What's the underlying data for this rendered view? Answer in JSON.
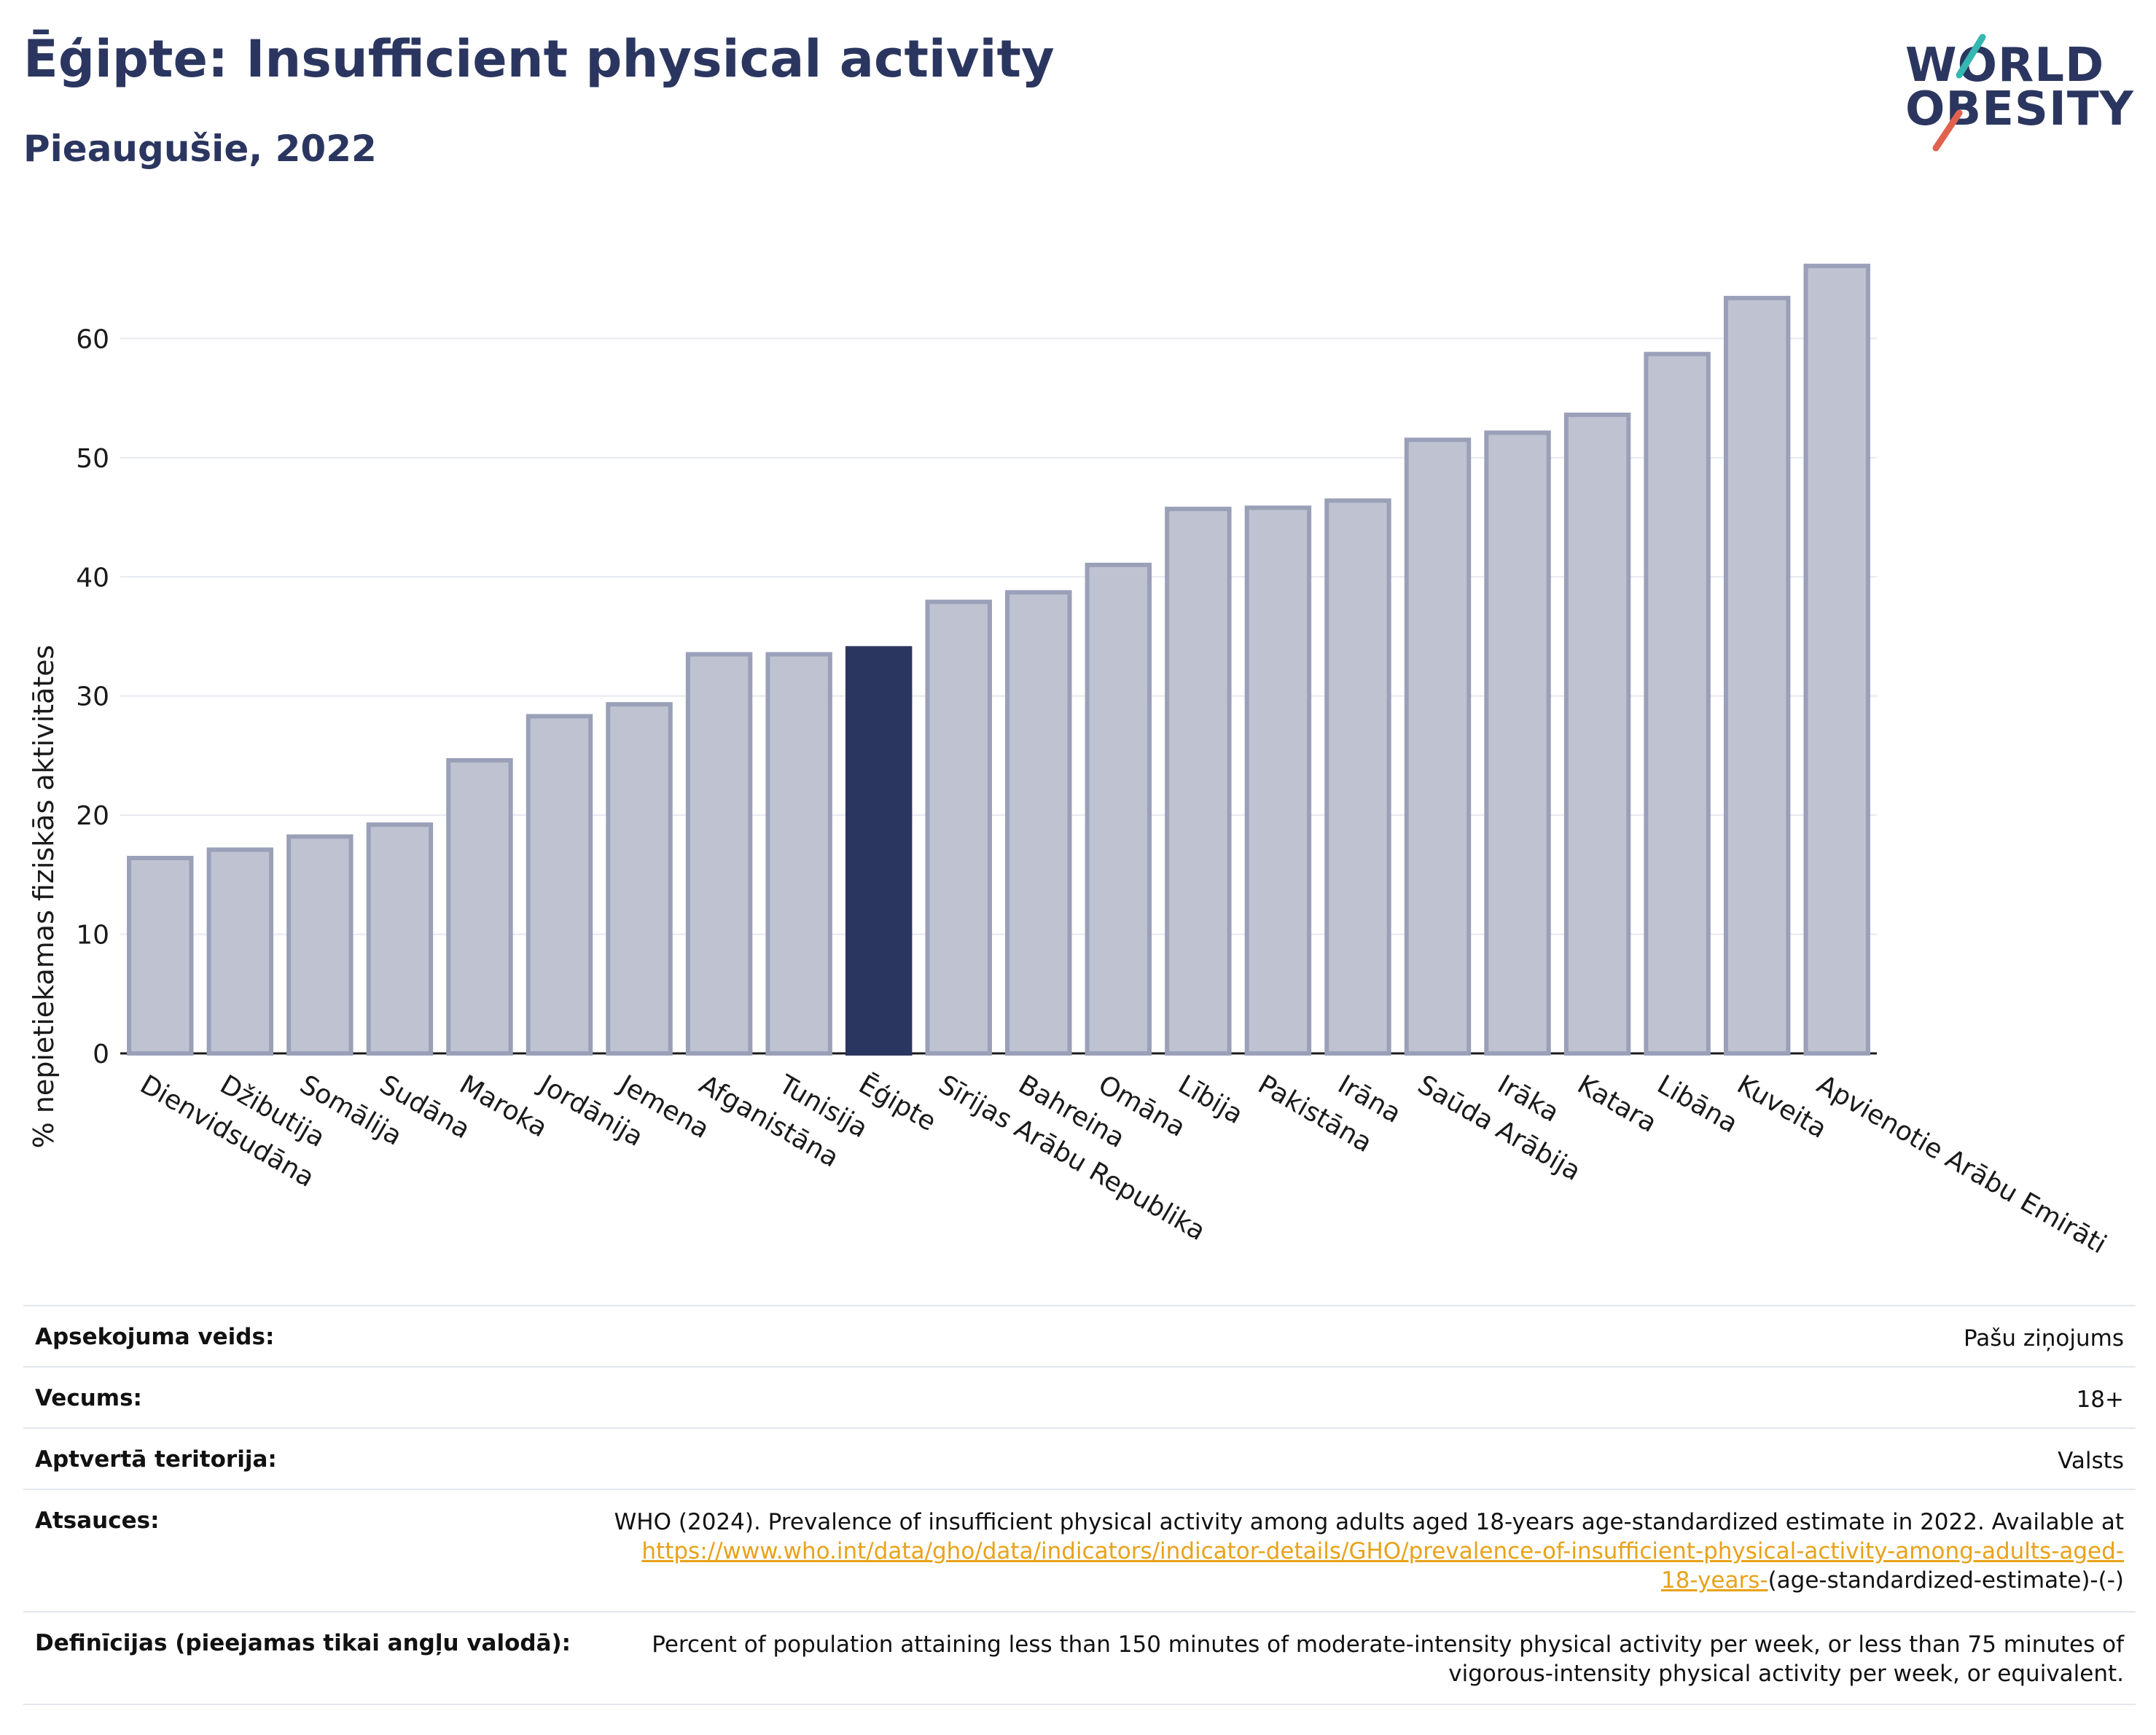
{
  "title": "Ēģipte: Insufficient physical activity",
  "subtitle": "Pieaugušie, 2022",
  "logo": {
    "line1": "WORLD",
    "line2": "OBESITY"
  },
  "colors": {
    "highlight": "#2b3660",
    "bar": "#bfc2d0",
    "bar_border": "#9aa0b8",
    "grid": "#e6e8f0",
    "accent_teal": "#35b7b2",
    "accent_red": "#e0624e"
  },
  "chart_data": {
    "type": "bar",
    "title": "Ēģipte: Insufficient physical activity",
    "subtitle": "Pieaugušie, 2022",
    "ylabel": "% nepietiekamas fiziskās aktivitātes",
    "xlabel": "",
    "ylim": [
      0,
      67
    ],
    "yticks": [
      0,
      10,
      20,
      30,
      40,
      50,
      60
    ],
    "grid": true,
    "highlight": "Ēģipte",
    "categories": [
      "Dienvidsudāna",
      "Džibutija",
      "Somālija",
      "Sudāna",
      "Maroka",
      "Jordānija",
      "Jemena",
      "Afganistāna",
      "Tunisija",
      "Ēģipte",
      "Sīrijas Arābu Republika",
      "Bahreina",
      "Omāna",
      "Lībija",
      "Pakistāna",
      "Irāna",
      "Saūda Arābija",
      "Irāka",
      "Katara",
      "Libāna",
      "Kuveita",
      "Apvienotie Arābu Emirāti"
    ],
    "values": [
      16.4,
      17.1,
      18.2,
      19.2,
      24.6,
      28.3,
      29.3,
      33.5,
      33.5,
      34.0,
      37.9,
      38.7,
      41.0,
      45.7,
      45.8,
      46.4,
      51.5,
      52.1,
      53.6,
      58.7,
      63.4,
      66.1
    ]
  },
  "meta": {
    "survey_label": "Apsekojuma veids:",
    "survey_value": "Pašu ziņojums",
    "age_label": "Vecums:",
    "age_value": "18+",
    "coverage_label": "Aptvertā teritorija:",
    "coverage_value": "Valsts",
    "refs_label": "Atsauces:",
    "refs_text": "WHO (2024). Prevalence of insufficient physical activity among adults aged 18-years age-standardized estimate in 2022. Available at",
    "refs_link_1": "https://www.who.int/data/gho/data/indicators/indicator-details/GHO/prevalence-of-insufficient-physical-activity-among-adults-aged-",
    "refs_link_2": "18-years-",
    "refs_tail": "(age-standardized-estimate)-(-)",
    "def_label": "Definīcijas (pieejamas tikai angļu valodā):",
    "def_text_1": "Percent of population attaining less than 150 minutes of moderate-intensity physical activity per week, or less than 75 minutes of",
    "def_text_2": "vigorous-intensity physical activity per week, or equivalent."
  }
}
